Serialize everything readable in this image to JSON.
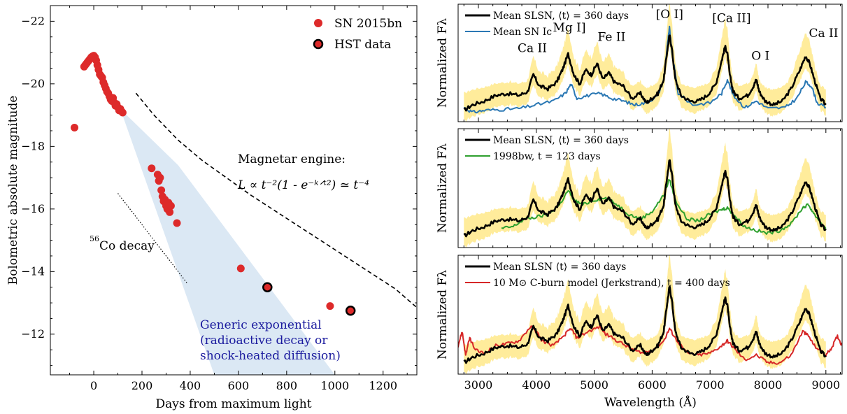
{
  "left_chart": {
    "type": "scatter",
    "xlabel": "Days from maximum light",
    "ylabel": "Bolometric absolute magnitude",
    "xlim": [
      -180,
      1340
    ],
    "ylim": [
      -10.7,
      -22.5
    ],
    "y_inverted": true,
    "x_ticks": [
      0,
      200,
      400,
      600,
      800,
      1000,
      1200
    ],
    "x_tick_labels": [
      "0",
      "200",
      "400",
      "600",
      "800",
      "1000",
      "1200"
    ],
    "y_ticks": [
      -22,
      -20,
      -18,
      -16,
      -14,
      -12
    ],
    "y_tick_labels": [
      "−22",
      "−20",
      "−18",
      "−16",
      "−14",
      "−12"
    ],
    "legend_position": "top-right",
    "legend": [
      {
        "label": "SN 2015bn",
        "marker": "red-dot"
      },
      {
        "label": "HST data",
        "marker": "red-dot-black-ring"
      }
    ],
    "colors": {
      "points": "#dd2a2a",
      "shade": "#dbe8f4",
      "annotation_blue": "#1a1a9e"
    },
    "series": [
      {
        "name": "SN 2015bn",
        "x": [
          -80,
          -40,
          -35,
          -30,
          -25,
          -20,
          -15,
          -10,
          -5,
          0,
          5,
          10,
          15,
          20,
          25,
          30,
          35,
          40,
          45,
          50,
          55,
          60,
          65,
          70,
          75,
          80,
          85,
          90,
          95,
          100,
          105,
          110,
          115,
          120,
          240,
          265,
          270,
          275,
          280,
          285,
          290,
          295,
          300,
          305,
          310,
          315,
          320,
          345,
          610,
          980
        ],
        "y": [
          -18.6,
          -20.55,
          -20.6,
          -20.65,
          -20.7,
          -20.75,
          -20.8,
          -20.85,
          -20.88,
          -20.9,
          -20.85,
          -20.75,
          -20.6,
          -20.45,
          -20.3,
          -20.25,
          -20.2,
          -20.05,
          -19.95,
          -19.85,
          -19.75,
          -19.7,
          -19.6,
          -19.5,
          -19.45,
          -19.55,
          -19.4,
          -19.3,
          -19.35,
          -19.25,
          -19.15,
          -19.2,
          -19.12,
          -19.08,
          -17.3,
          -17.1,
          -16.9,
          -17.0,
          -16.6,
          -16.4,
          -16.25,
          -16.3,
          -16.1,
          -16.0,
          -16.2,
          -15.9,
          -16.1,
          -15.55,
          -14.1,
          -12.9
        ]
      },
      {
        "name": "HST data",
        "x": [
          720,
          1065
        ],
        "y": [
          -13.5,
          -12.75
        ]
      }
    ],
    "magnetar_curve": {
      "x": [
        175,
        250,
        350,
        450,
        550,
        650,
        750,
        850,
        950,
        1050,
        1150,
        1250,
        1340
      ],
      "y": [
        -19.7,
        -19.0,
        -18.2,
        -17.55,
        -17.0,
        -16.45,
        -15.95,
        -15.45,
        -14.95,
        -14.45,
        -13.95,
        -13.45,
        -12.85
      ]
    },
    "co_decay_line": {
      "x": [
        100,
        390
      ],
      "y": [
        -16.5,
        -13.6
      ]
    },
    "shaded_region": {
      "x": [
        110,
        350,
        1000,
        500,
        110
      ],
      "y": [
        -19.2,
        -17.4,
        -10.7,
        -10.7,
        -19.2
      ]
    },
    "annotations": {
      "magnetar_title": "Magnetar engine:",
      "magnetar_formula": "L ∝ t⁻²(1 - e⁻ᵏᐟᵗ²) ≃ t⁻⁴",
      "co_decay_super": "56",
      "co_decay_text": "Co decay",
      "generic_line1": "Generic exponential",
      "generic_line2": "(radioactive decay or",
      "generic_line3": "shock-heated diffusion)"
    }
  },
  "right_panels": {
    "xlabel": "Wavelength (Å)",
    "ylabel": "Normalized Fλ",
    "xlim": [
      2650,
      9280
    ],
    "x_ticks": [
      3000,
      4000,
      5000,
      6000,
      7000,
      8000,
      9000
    ],
    "x_tick_labels": [
      "3000",
      "4000",
      "5000",
      "6000",
      "7000",
      "8000",
      "9000"
    ],
    "colors": {
      "mean": "#000000",
      "band": "#ffe98a",
      "ic": "#2b78b4",
      "bw": "#2ea02e",
      "model": "#d62728"
    },
    "mean_spectrum": {
      "x": [
        2750,
        2900,
        3100,
        3300,
        3500,
        3700,
        3850,
        3950,
        4050,
        4200,
        4350,
        4450,
        4550,
        4650,
        4750,
        4850,
        4950,
        5050,
        5150,
        5250,
        5350,
        5500,
        5650,
        5800,
        5900,
        6000,
        6100,
        6200,
        6260,
        6300,
        6340,
        6400,
        6500,
        6650,
        6800,
        6950,
        7100,
        7200,
        7260,
        7300,
        7340,
        7400,
        7500,
        7650,
        7750,
        7800,
        7850,
        7950,
        8100,
        8250,
        8400,
        8550,
        8650,
        8720,
        8800,
        8900,
        9000
      ],
      "y": [
        0.12,
        0.18,
        0.22,
        0.28,
        0.3,
        0.28,
        0.32,
        0.5,
        0.38,
        0.35,
        0.42,
        0.55,
        0.72,
        0.5,
        0.4,
        0.55,
        0.5,
        0.62,
        0.45,
        0.52,
        0.42,
        0.38,
        0.25,
        0.3,
        0.2,
        0.25,
        0.3,
        0.45,
        0.75,
        0.92,
        0.78,
        0.45,
        0.28,
        0.22,
        0.22,
        0.28,
        0.4,
        0.65,
        0.8,
        0.72,
        0.5,
        0.32,
        0.25,
        0.28,
        0.38,
        0.45,
        0.32,
        0.22,
        0.18,
        0.22,
        0.35,
        0.55,
        0.7,
        0.62,
        0.45,
        0.25,
        0.18
      ]
    },
    "panels": [
      {
        "legend": [
          {
            "label": "Mean SLSN, ⟨t⟩ = 360 days",
            "color": "#000000"
          },
          {
            "label": "Mean SN Ic",
            "color": "#2b78b4"
          }
        ],
        "line_labels": [
          {
            "text": "Ca II",
            "x": 3930,
            "y": 0.74
          },
          {
            "text": "Mg I]",
            "x": 4570,
            "y": 0.96
          },
          {
            "text": "Fe II",
            "x": 5300,
            "y": 0.86
          },
          {
            "text": "[O I]",
            "x": 6300,
            "y": 1.1
          },
          {
            "text": "[Ca II]",
            "x": 7370,
            "y": 1.06
          },
          {
            "text": "O I",
            "x": 7870,
            "y": 0.66
          },
          {
            "text": "Ca II",
            "x": 8960,
            "y": 0.9
          }
        ],
        "comparison": {
          "name": "Mean SN Ic",
          "x": [
            2750,
            2900,
            3100,
            3400,
            3700,
            4000,
            4300,
            4500,
            4600,
            4700,
            4900,
            5100,
            5300,
            5500,
            5700,
            5900,
            6100,
            6200,
            6260,
            6300,
            6340,
            6450,
            6700,
            7000,
            7200,
            7300,
            7400,
            7600,
            7800,
            8000,
            8300,
            8500,
            8650,
            8750,
            8850,
            9000
          ],
          "y": [
            0.15,
            0.1,
            0.12,
            0.13,
            0.14,
            0.18,
            0.22,
            0.3,
            0.4,
            0.25,
            0.28,
            0.3,
            0.25,
            0.22,
            0.18,
            0.2,
            0.28,
            0.45,
            0.8,
            1.0,
            0.75,
            0.3,
            0.18,
            0.2,
            0.3,
            0.45,
            0.28,
            0.15,
            0.22,
            0.14,
            0.15,
            0.25,
            0.42,
            0.38,
            0.2,
            0.15
          ]
        }
      },
      {
        "legend": [
          {
            "label": "Mean SLSN, ⟨t⟩ = 360 days",
            "color": "#000000"
          },
          {
            "label": "1998bw, t = 123 days",
            "color": "#2ea02e"
          }
        ],
        "line_labels": [],
        "comparison": {
          "name": "1998bw",
          "x": [
            3400,
            3600,
            3800,
            4000,
            4200,
            4400,
            4550,
            4650,
            4800,
            5000,
            5200,
            5400,
            5600,
            5800,
            6000,
            6200,
            6300,
            6400,
            6600,
            6800,
            7000,
            7200,
            7300,
            7400,
            7600,
            7800,
            8000,
            8200,
            8400,
            8600,
            8700,
            8800,
            9000
          ],
          "y": [
            0.2,
            0.22,
            0.3,
            0.32,
            0.35,
            0.45,
            0.6,
            0.5,
            0.45,
            0.5,
            0.52,
            0.45,
            0.35,
            0.3,
            0.38,
            0.55,
            0.72,
            0.5,
            0.3,
            0.28,
            0.35,
            0.4,
            0.42,
            0.35,
            0.22,
            0.18,
            0.15,
            0.18,
            0.25,
            0.42,
            0.45,
            0.35,
            0.2
          ]
        }
      },
      {
        "legend": [
          {
            "label": "Mean SLSN ⟨t⟩ = 360 days",
            "color": "#000000"
          },
          {
            "label": "10 M⊙ C-burn model (Jerkstrand), t = 400 days",
            "color": "#d62728"
          }
        ],
        "line_labels": [],
        "comparison": {
          "name": "10 M⊙ C-burn model",
          "x": [
            2650,
            2720,
            2780,
            2850,
            2950,
            3100,
            3300,
            3500,
            3700,
            3900,
            4000,
            4100,
            4300,
            4500,
            4600,
            4700,
            4900,
            5100,
            5200,
            5400,
            5600,
            5800,
            6000,
            6200,
            6300,
            6400,
            6600,
            6800,
            7000,
            7200,
            7300,
            7400,
            7600,
            7800,
            8000,
            8200,
            8400,
            8600,
            8700,
            8800,
            9000,
            9100,
            9200,
            9280
          ],
          "y": [
            0.3,
            0.45,
            0.2,
            0.38,
            0.25,
            0.22,
            0.3,
            0.32,
            0.35,
            0.5,
            0.45,
            0.35,
            0.3,
            0.42,
            0.48,
            0.38,
            0.45,
            0.5,
            0.42,
            0.35,
            0.28,
            0.22,
            0.25,
            0.35,
            0.48,
            0.38,
            0.22,
            0.2,
            0.22,
            0.3,
            0.35,
            0.28,
            0.15,
            0.2,
            0.12,
            0.12,
            0.2,
            0.45,
            0.4,
            0.3,
            0.2,
            0.28,
            0.4,
            0.3
          ]
        }
      }
    ]
  }
}
